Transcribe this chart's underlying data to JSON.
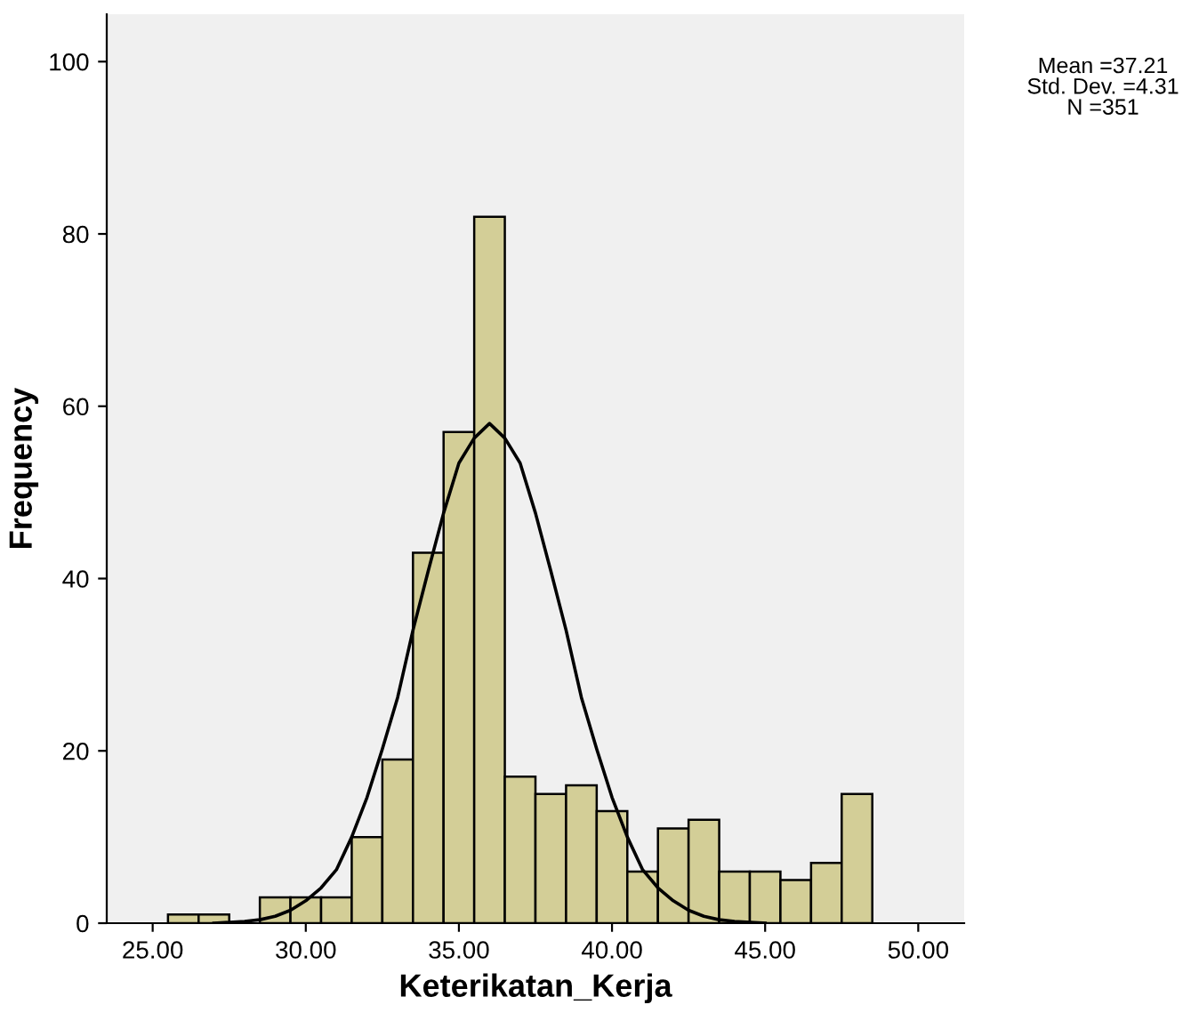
{
  "chart_data": {
    "type": "histogram",
    "xlabel": "Keterikatan_Kerja",
    "ylabel": "Frequency",
    "bins": [
      25.5,
      26.5,
      27.5,
      28.5,
      29.5,
      30.5,
      31.5,
      32.5,
      33.5,
      34.5,
      35.5,
      36.5,
      37.5,
      38.5,
      39.5,
      40.5,
      41.5,
      42.5,
      43.5,
      44.5,
      45.5,
      46.5,
      47.5,
      48.5
    ],
    "values": [
      1,
      1,
      0,
      3,
      3,
      3,
      10,
      19,
      43,
      57,
      82,
      17,
      15,
      16,
      13,
      6,
      11,
      12,
      6,
      6,
      5,
      7,
      15
    ],
    "color": "#d3ce97",
    "series": [
      {
        "type": "line",
        "color": "#000000",
        "x": [
          27,
          28,
          28.5,
          29,
          29.5,
          30,
          30.5,
          31,
          31.5,
          32,
          32.5,
          33,
          33.5,
          34,
          34.5,
          35,
          35.5,
          36,
          36.5,
          37,
          37.5,
          38,
          38.5,
          39,
          39.5,
          40,
          40.5,
          41,
          41.5,
          42,
          42.5,
          43,
          43.5,
          44,
          45
        ],
        "values": [
          0,
          0.2,
          0.4,
          0.8,
          1.5,
          2.6,
          4.1,
          6.2,
          10,
          14.6,
          20.2,
          26.2,
          34,
          40.9,
          47.6,
          53.4,
          56.3,
          58,
          56.3,
          53.4,
          47.6,
          40.9,
          34,
          26.2,
          20.2,
          14.6,
          10,
          6.2,
          4.1,
          2.6,
          1.5,
          0.8,
          0.4,
          0.2,
          0
        ]
      }
    ],
    "xlim": [
      23.5,
      51.5
    ],
    "ylim": [
      0,
      105.5
    ],
    "xticks": [
      {
        "value": 25,
        "label": "25.00"
      },
      {
        "value": 30,
        "label": "30.00"
      },
      {
        "value": 35,
        "label": "35.00"
      },
      {
        "value": 40,
        "label": "40.00"
      },
      {
        "value": 45,
        "label": "45.00"
      },
      {
        "value": 50,
        "label": "50.00"
      }
    ],
    "yticks": [
      0,
      20,
      40,
      60,
      80,
      100
    ],
    "grid": false,
    "legend": false,
    "annotations": [
      "Mean =37.21\nStd. Dev. =4.31\nN =351"
    ]
  }
}
